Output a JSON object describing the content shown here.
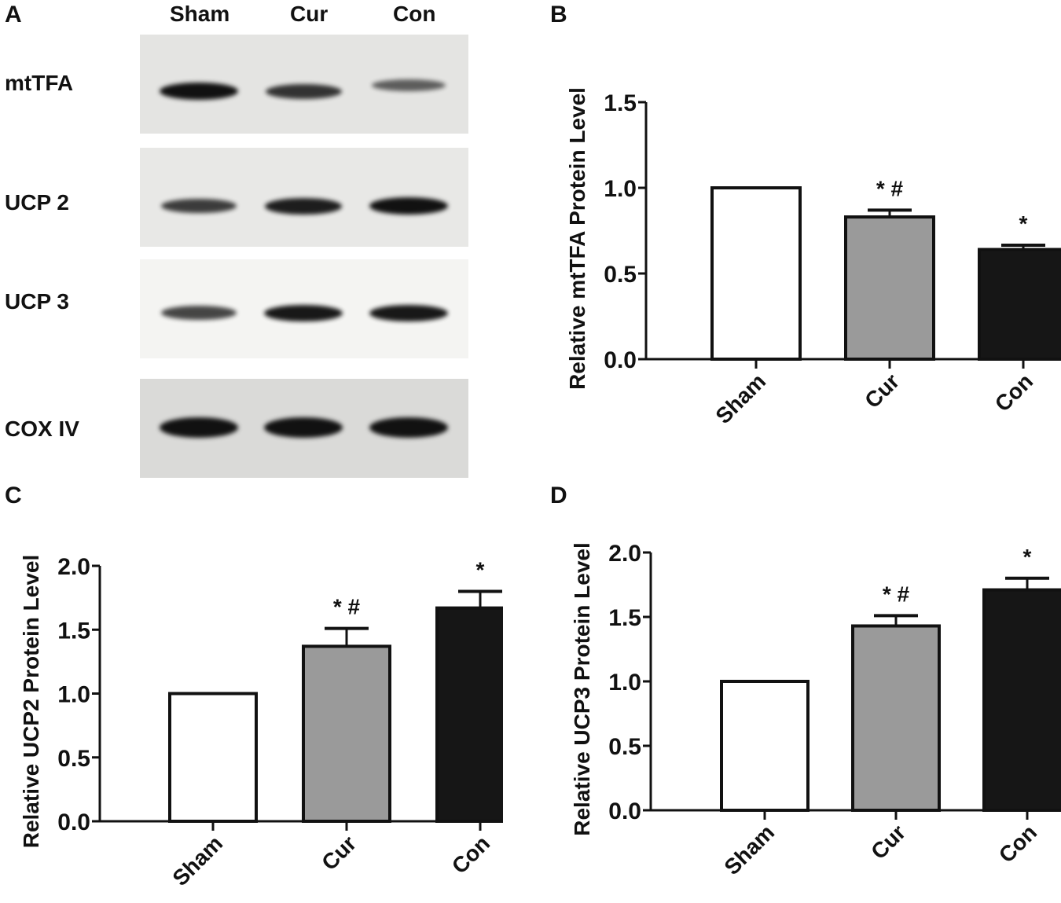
{
  "panels": {
    "a": {
      "letter": "A",
      "lanes": [
        "Sham",
        "Cur",
        "Con"
      ],
      "blots": [
        {
          "label": "mtTFA",
          "background": "#e4e4e2",
          "band_intensity": [
            1.0,
            0.75,
            0.45
          ]
        },
        {
          "label": "UCP 2",
          "background": "#e8e8e6",
          "band_intensity": [
            0.7,
            0.9,
            1.0
          ]
        },
        {
          "label": "UCP 3",
          "background": "#f4f4f2",
          "band_intensity": [
            0.65,
            0.95,
            0.95
          ]
        },
        {
          "label": "COX IV",
          "background": "#dadad8",
          "band_intensity": [
            1.0,
            1.0,
            1.0
          ]
        }
      ]
    },
    "b": {
      "letter": "B"
    },
    "c": {
      "letter": "C"
    },
    "d": {
      "letter": "D"
    }
  },
  "colors": {
    "sham": "#ffffff",
    "cur": "#9a9a9a",
    "con": "#161616",
    "axis": "#111111"
  },
  "chart_data": [
    {
      "panel": "B",
      "type": "bar",
      "title": "",
      "xlabel": "",
      "ylabel": "Relative mtTFA Protein Level",
      "categories": [
        "Sham",
        "Cur",
        "Con"
      ],
      "values": [
        1.0,
        0.83,
        0.64
      ],
      "error_upper": [
        0.0,
        0.87,
        0.665
      ],
      "annotations": [
        "",
        "* #",
        "*"
      ],
      "ylim": [
        0,
        1.5
      ],
      "yticks": [
        "0.0",
        "0.5",
        "1.0",
        "1.5"
      ],
      "grid": false,
      "legend": "none"
    },
    {
      "panel": "C",
      "type": "bar",
      "title": "",
      "xlabel": "",
      "ylabel": "Relative UCP2 Protein Level",
      "categories": [
        "Sham",
        "Cur",
        "Con"
      ],
      "values": [
        1.0,
        1.37,
        1.67
      ],
      "error_upper": [
        0.0,
        1.51,
        1.8
      ],
      "annotations": [
        "",
        "* #",
        "*"
      ],
      "ylim": [
        0,
        2.0
      ],
      "yticks": [
        "0.0",
        "0.5",
        "1.0",
        "1.5",
        "2.0"
      ],
      "grid": false,
      "legend": "none"
    },
    {
      "panel": "D",
      "type": "bar",
      "title": "",
      "xlabel": "",
      "ylabel": "Relative UCP3 Protein Level",
      "categories": [
        "Sham",
        "Cur",
        "Con"
      ],
      "values": [
        1.0,
        1.43,
        1.71
      ],
      "error_upper": [
        0.0,
        1.51,
        1.8
      ],
      "annotations": [
        "",
        "* #",
        "*"
      ],
      "ylim": [
        0,
        2.0
      ],
      "yticks": [
        "0.0",
        "0.5",
        "1.0",
        "1.5",
        "2.0"
      ],
      "grid": false,
      "legend": "none"
    }
  ]
}
